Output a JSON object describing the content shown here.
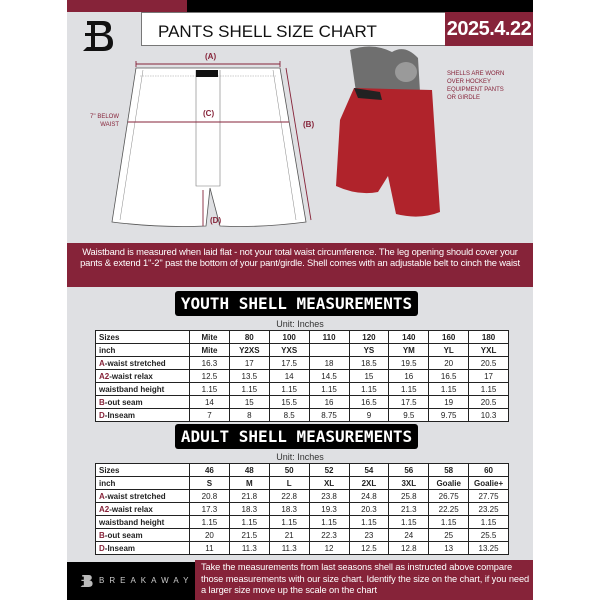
{
  "header": {
    "title": "PANTS SHELL SIZE CHART",
    "date": "2025.4.22"
  },
  "diagram": {
    "label_a": "(A)",
    "label_b": "(B)",
    "label_c": "(C)",
    "label_d": "(D)",
    "below_waist": "7'' BELOW WAIST",
    "worn_note": "SHELLS ARE WORN OVER HOCKEY EQUIPMENT PANTS OR GIRDLE"
  },
  "info_band": "Waistband is measured when laid flat - not your total waist circumference. The leg opening should cover your pants & extend 1''-2'' past the bottom of your pant/girdle. Shell comes with an adjustable belt to cinch the waist",
  "colors": {
    "accent": "#862339",
    "black": "#000000",
    "background": "#dfe0e3"
  },
  "youth": {
    "title": "YOUTH SHELL MEASUREMENTS",
    "unit": "Unit: Inches",
    "rows": [
      {
        "label": "Sizes",
        "values": [
          "Mite",
          "80",
          "100",
          "110",
          "120",
          "140",
          "160",
          "180"
        ]
      },
      {
        "label": "inch",
        "values": [
          "Mite",
          "Y2XS",
          "YXS",
          "",
          "YS",
          "YM",
          "YL",
          "YXL"
        ]
      },
      {
        "prefix": "A",
        "label": "-waist stretched",
        "values": [
          "16.3",
          "17",
          "17.5",
          "18",
          "18.5",
          "19.5",
          "20",
          "20.5"
        ]
      },
      {
        "prefix": "A2",
        "label": "-waist relax",
        "values": [
          "12.5",
          "13.5",
          "14",
          "14.5",
          "15",
          "16",
          "16.5",
          "17"
        ]
      },
      {
        "label": "waistband height",
        "values": [
          "1.15",
          "1.15",
          "1.15",
          "1.15",
          "1.15",
          "1.15",
          "1.15",
          "1.15"
        ]
      },
      {
        "prefix": "B",
        "label": "-out seam",
        "values": [
          "14",
          "15",
          "15.5",
          "16",
          "16.5",
          "17.5",
          "19",
          "20.5"
        ]
      },
      {
        "prefix": "D",
        "label": "-Inseam",
        "values": [
          "7",
          "8",
          "8.5",
          "8.75",
          "9",
          "9.5",
          "9.75",
          "10.3"
        ]
      }
    ]
  },
  "adult": {
    "title": "ADULT SHELL MEASUREMENTS",
    "unit": "Unit: Inches",
    "rows": [
      {
        "label": "Sizes",
        "values": [
          "46",
          "48",
          "50",
          "52",
          "54",
          "56",
          "58",
          "60"
        ]
      },
      {
        "label": "inch",
        "values": [
          "S",
          "M",
          "L",
          "XL",
          "2XL",
          "3XL",
          "Goalie",
          "Goalie+"
        ]
      },
      {
        "prefix": "A",
        "label": "-waist stretched",
        "values": [
          "20.8",
          "21.8",
          "22.8",
          "23.8",
          "24.8",
          "25.8",
          "26.75",
          "27.75"
        ]
      },
      {
        "prefix": "A2",
        "label": "-waist relax",
        "values": [
          "17.3",
          "18.3",
          "18.3",
          "19.3",
          "20.3",
          "21.3",
          "22.25",
          "23.25"
        ]
      },
      {
        "label": "waistband height",
        "values": [
          "1.15",
          "1.15",
          "1.15",
          "1.15",
          "1.15",
          "1.15",
          "1.15",
          "1.15"
        ]
      },
      {
        "prefix": "B",
        "label": "-out seam",
        "values": [
          "20",
          "21.5",
          "21",
          "22.3",
          "23",
          "24",
          "25",
          "25.5"
        ]
      },
      {
        "prefix": "D",
        "label": "-Inseam",
        "values": [
          "11",
          "11.3",
          "11.3",
          "12",
          "12.5",
          "12.8",
          "13",
          "13.25"
        ]
      }
    ]
  },
  "footer": {
    "brand": "BREAKAWAY",
    "instructions": "Take the measurements from last seasons shell as instructed above compare those measurements  with our size chart. Identify the size on the chart, if you need a larger size move up the scale on the chart"
  }
}
